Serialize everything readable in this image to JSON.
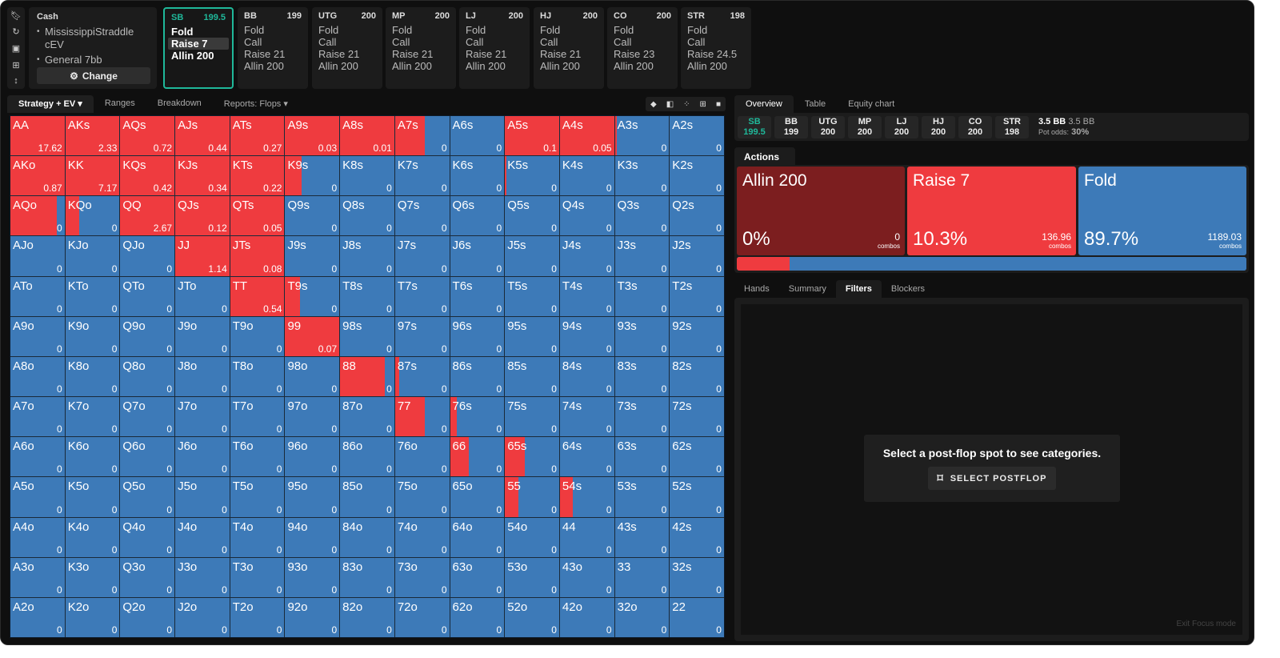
{
  "sidebar_icons": [
    "bookmark-icon",
    "reset-icon",
    "save-icon",
    "gamepad-icon",
    "expand-vertical-icon"
  ],
  "game": {
    "type": "Cash",
    "items": [
      "MississippiStraddle cEV",
      "General 7bb"
    ],
    "change_label": "Change"
  },
  "positions": [
    {
      "name": "SB",
      "stack": "199.5",
      "actions": [
        "Fold",
        "Raise 7",
        "Allin 200"
      ],
      "selected": true,
      "active_action": 1
    },
    {
      "name": "BB",
      "stack": "199",
      "actions": [
        "Fold",
        "Call",
        "Raise 21",
        "Allin 200"
      ]
    },
    {
      "name": "UTG",
      "stack": "200",
      "actions": [
        "Fold",
        "Call",
        "Raise 21",
        "Allin 200"
      ]
    },
    {
      "name": "MP",
      "stack": "200",
      "actions": [
        "Fold",
        "Call",
        "Raise 21",
        "Allin 200"
      ]
    },
    {
      "name": "LJ",
      "stack": "200",
      "actions": [
        "Fold",
        "Call",
        "Raise 21",
        "Allin 200"
      ]
    },
    {
      "name": "HJ",
      "stack": "200",
      "actions": [
        "Fold",
        "Call",
        "Raise 21",
        "Allin 200"
      ]
    },
    {
      "name": "CO",
      "stack": "200",
      "actions": [
        "Fold",
        "Call",
        "Raise 23",
        "Allin 200"
      ]
    },
    {
      "name": "STR",
      "stack": "198",
      "actions": [
        "Fold",
        "Call",
        "Raise 24.5",
        "Allin 200"
      ]
    }
  ],
  "left_tabs": [
    {
      "label": "Strategy + EV ▾",
      "active": true
    },
    {
      "label": "Ranges"
    },
    {
      "label": "Breakdown"
    },
    {
      "label": "Reports: Flops ▾"
    }
  ],
  "colors": {
    "raise": "#ef3b3f",
    "fold": "#3d7ab8",
    "allin": "#7c1e1f",
    "accent": "#1fb89a"
  },
  "matrix": {
    "hands": [
      [
        "AA",
        "AKs",
        "AQs",
        "AJs",
        "ATs",
        "A9s",
        "A8s",
        "A7s",
        "A6s",
        "A5s",
        "A4s",
        "A3s",
        "A2s"
      ],
      [
        "AKo",
        "KK",
        "KQs",
        "KJs",
        "KTs",
        "K9s",
        "K8s",
        "K7s",
        "K6s",
        "K5s",
        "K4s",
        "K3s",
        "K2s"
      ],
      [
        "AQo",
        "KQo",
        "QQ",
        "QJs",
        "QTs",
        "Q9s",
        "Q8s",
        "Q7s",
        "Q6s",
        "Q5s",
        "Q4s",
        "Q3s",
        "Q2s"
      ],
      [
        "AJo",
        "KJo",
        "QJo",
        "JJ",
        "JTs",
        "J9s",
        "J8s",
        "J7s",
        "J6s",
        "J5s",
        "J4s",
        "J3s",
        "J2s"
      ],
      [
        "ATo",
        "KTo",
        "QTo",
        "JTo",
        "TT",
        "T9s",
        "T8s",
        "T7s",
        "T6s",
        "T5s",
        "T4s",
        "T3s",
        "T2s"
      ],
      [
        "A9o",
        "K9o",
        "Q9o",
        "J9o",
        "T9o",
        "99",
        "98s",
        "97s",
        "96s",
        "95s",
        "94s",
        "93s",
        "92s"
      ],
      [
        "A8o",
        "K8o",
        "Q8o",
        "J8o",
        "T8o",
        "98o",
        "88",
        "87s",
        "86s",
        "85s",
        "84s",
        "83s",
        "82s"
      ],
      [
        "A7o",
        "K7o",
        "Q7o",
        "J7o",
        "T7o",
        "97o",
        "87o",
        "77",
        "76s",
        "75s",
        "74s",
        "73s",
        "72s"
      ],
      [
        "A6o",
        "K6o",
        "Q6o",
        "J6o",
        "T6o",
        "96o",
        "86o",
        "76o",
        "66",
        "65s",
        "64s",
        "63s",
        "62s"
      ],
      [
        "A5o",
        "K5o",
        "Q5o",
        "J5o",
        "T5o",
        "95o",
        "85o",
        "75o",
        "65o",
        "55",
        "54s",
        "53s",
        "52s"
      ],
      [
        "A4o",
        "K4o",
        "Q4o",
        "J4o",
        "T4o",
        "94o",
        "84o",
        "74o",
        "64o",
        "54o",
        "44",
        "43s",
        "42s"
      ],
      [
        "A3o",
        "K3o",
        "Q3o",
        "J3o",
        "T3o",
        "93o",
        "83o",
        "73o",
        "63o",
        "53o",
        "43o",
        "33",
        "32s"
      ],
      [
        "A2o",
        "K2o",
        "Q2o",
        "J2o",
        "T2o",
        "92o",
        "82o",
        "72o",
        "62o",
        "52o",
        "42o",
        "32o",
        "22"
      ]
    ],
    "ev": [
      [
        "17.62",
        "2.33",
        "0.72",
        "0.44",
        "0.27",
        "0.03",
        "0.01",
        "0",
        "0",
        "0.1",
        "0.05",
        "0",
        "0"
      ],
      [
        "0.87",
        "7.17",
        "0.42",
        "0.34",
        "0.22",
        "0",
        "0",
        "0",
        "0",
        "0",
        "0",
        "0",
        "0"
      ],
      [
        "0",
        "0",
        "2.67",
        "0.12",
        "0.05",
        "0",
        "0",
        "0",
        "0",
        "0",
        "0",
        "0",
        "0"
      ],
      [
        "0",
        "0",
        "0",
        "1.14",
        "0.08",
        "0",
        "0",
        "0",
        "0",
        "0",
        "0",
        "0",
        "0"
      ],
      [
        "0",
        "0",
        "0",
        "0",
        "0.54",
        "0",
        "0",
        "0",
        "0",
        "0",
        "0",
        "0",
        "0"
      ],
      [
        "0",
        "0",
        "0",
        "0",
        "0",
        "0.07",
        "0",
        "0",
        "0",
        "0",
        "0",
        "0",
        "0"
      ],
      [
        "0",
        "0",
        "0",
        "0",
        "0",
        "0",
        "0",
        "0",
        "0",
        "0",
        "0",
        "0",
        "0"
      ],
      [
        "0",
        "0",
        "0",
        "0",
        "0",
        "0",
        "0",
        "0",
        "0",
        "0",
        "0",
        "0",
        "0"
      ],
      [
        "0",
        "0",
        "0",
        "0",
        "0",
        "0",
        "0",
        "0",
        "0",
        "0",
        "0",
        "0",
        "0"
      ],
      [
        "0",
        "0",
        "0",
        "0",
        "0",
        "0",
        "0",
        "0",
        "0",
        "0",
        "0",
        "0",
        "0"
      ],
      [
        "0",
        "0",
        "0",
        "0",
        "0",
        "0",
        "0",
        "0",
        "0",
        "0",
        "0",
        "0",
        "0"
      ],
      [
        "0",
        "0",
        "0",
        "0",
        "0",
        "0",
        "0",
        "0",
        "0",
        "0",
        "0",
        "0",
        "0"
      ],
      [
        "0",
        "0",
        "0",
        "0",
        "0",
        "0",
        "0",
        "0",
        "0",
        "0",
        "0",
        "0",
        "0"
      ]
    ],
    "raise_freq": [
      [
        1,
        1,
        1,
        1,
        1,
        1,
        1,
        0.55,
        0,
        1,
        1,
        0.04,
        0
      ],
      [
        1,
        1,
        1,
        1,
        1,
        0.3,
        0,
        0,
        0,
        0.02,
        0,
        0,
        0
      ],
      [
        0.85,
        0.25,
        1,
        1,
        1,
        0,
        0,
        0,
        0,
        0,
        0,
        0,
        0
      ],
      [
        0,
        0,
        0,
        1,
        1,
        0,
        0,
        0,
        0,
        0,
        0,
        0,
        0
      ],
      [
        0,
        0,
        0,
        0,
        1,
        0.28,
        0,
        0,
        0,
        0,
        0,
        0,
        0
      ],
      [
        0,
        0,
        0,
        0,
        0,
        1,
        0,
        0,
        0,
        0,
        0,
        0,
        0
      ],
      [
        0,
        0,
        0,
        0,
        0,
        0,
        0.83,
        0.08,
        0,
        0,
        0,
        0,
        0
      ],
      [
        0,
        0,
        0,
        0,
        0,
        0,
        0,
        0.55,
        0.13,
        0,
        0,
        0,
        0
      ],
      [
        0,
        0,
        0,
        0,
        0,
        0,
        0,
        0,
        0.34,
        0.37,
        0,
        0,
        0
      ],
      [
        0,
        0,
        0,
        0,
        0,
        0,
        0,
        0,
        0,
        0.25,
        0.24,
        0,
        0
      ],
      [
        0,
        0,
        0,
        0,
        0,
        0,
        0,
        0,
        0,
        0,
        0,
        0,
        0
      ],
      [
        0,
        0,
        0,
        0,
        0,
        0,
        0,
        0,
        0,
        0,
        0,
        0,
        0
      ],
      [
        0,
        0,
        0,
        0,
        0,
        0,
        0,
        0,
        0,
        0,
        0,
        0,
        0
      ]
    ]
  },
  "right_tabs": [
    {
      "label": "Overview",
      "active": true
    },
    {
      "label": "Table"
    },
    {
      "label": "Equity chart"
    }
  ],
  "pot": {
    "bb": "3.5 BB",
    "bb2": "3.5 BB",
    "odds_label": "Pot odds:",
    "odds": "30%"
  },
  "actions_tab": "Actions ▾",
  "actions": [
    {
      "name": "Allin 200",
      "pct": "0%",
      "combos": "0",
      "freq": 0
    },
    {
      "name": "Raise 7",
      "pct": "10.3%",
      "combos": "136.96",
      "freq": 10.3
    },
    {
      "name": "Fold",
      "pct": "89.7%",
      "combos": "1189.03",
      "freq": 89.7
    }
  ],
  "combos_label": "combos",
  "bottom_tabs": [
    {
      "label": "Hands"
    },
    {
      "label": "Summary"
    },
    {
      "label": "Filters",
      "active": true
    },
    {
      "label": "Blockers"
    }
  ],
  "filters": {
    "message": "Select a post-flop spot to see categories.",
    "button": "SELECT POSTFLOP"
  },
  "exit_focus": "Exit Focus mode"
}
